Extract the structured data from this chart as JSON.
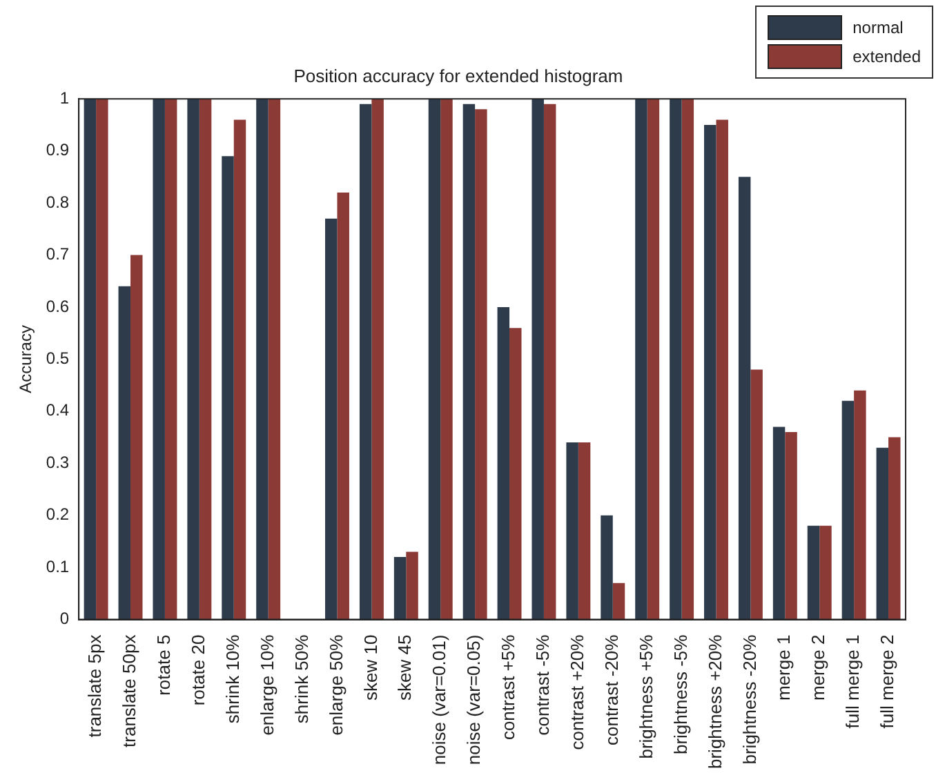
{
  "chart_data": {
    "type": "bar",
    "title": "Position accuracy for extended histogram",
    "ylabel": "Accuracy",
    "categories": [
      "translate 5px",
      "translate 50px",
      "rotate 5",
      "rotate 20",
      "shrink 10%",
      "enlarge 10%",
      "shrink 50%",
      "enlarge 50%",
      "skew 10",
      "skew 45",
      "noise (var=0.01)",
      "noise (var=0.05)",
      "contrast +5%",
      "contrast -5%",
      "contrast +20%",
      "contrast -20%",
      "brightness +5%",
      "brightness -5%",
      "brightness +20%",
      "brightness -20%",
      "merge 1",
      "merge 2",
      "full merge 1",
      "full merge 2"
    ],
    "series": [
      {
        "name": "normal",
        "color": "#2d3b4b",
        "values": [
          1,
          0.64,
          1,
          1,
          0.89,
          1,
          0,
          0.77,
          0.99,
          0.12,
          1,
          0.99,
          0.6,
          1,
          0.34,
          0.2,
          1,
          1,
          0.95,
          0.85,
          0.37,
          0.18,
          0.42,
          0.33
        ]
      },
      {
        "name": "extended",
        "color": "#8b3a36",
        "values": [
          1,
          0.7,
          1,
          1,
          0.96,
          1,
          0,
          0.82,
          1,
          0.13,
          1,
          0.98,
          0.56,
          0.99,
          0.34,
          0.07,
          1,
          1,
          0.96,
          0.48,
          0.36,
          0.18,
          0.44,
          0.35
        ]
      }
    ],
    "ylim": [
      0,
      1
    ],
    "yticks": [
      0,
      0.1,
      0.2,
      0.3,
      0.4,
      0.5,
      0.6,
      0.7,
      0.8,
      0.9,
      1
    ],
    "grid": false,
    "legend": "top right"
  }
}
